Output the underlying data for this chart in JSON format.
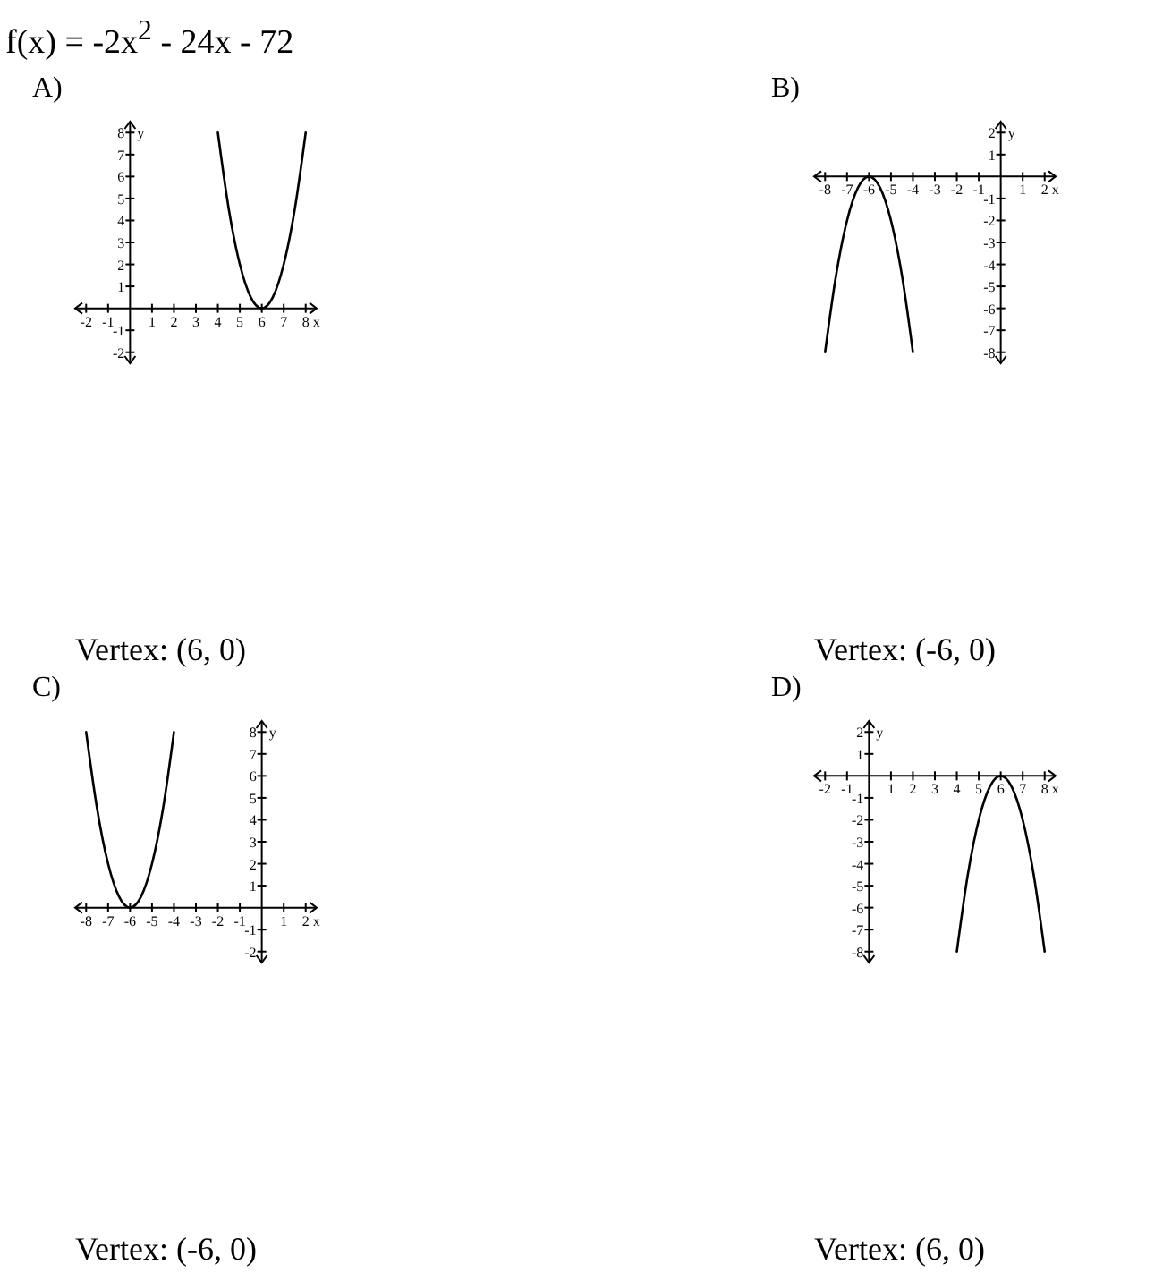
{
  "chart_data": [
    {
      "type": "line",
      "title": "f(x) = -2x$^{2}$ - 24x - 72",
      "subtitle": "A)",
      "xlabel": "x",
      "ylabel": "y",
      "xlim": [
        -2.5,
        8.5
      ],
      "ylim": [
        -2.5,
        8.5
      ],
      "xticks": [
        -2,
        -1,
        1,
        2,
        3,
        4,
        5,
        6,
        7,
        8
      ],
      "yticks": [
        -2,
        -1,
        1,
        2,
        3,
        4,
        5,
        6,
        7,
        8
      ],
      "marker": "none",
      "line_style": "solid",
      "series": [
        {
          "color": "#000000",
          "x": [
            4,
            4.5,
            5,
            5.5,
            6,
            6.5,
            7,
            7.5,
            8
          ],
          "values": [
            8,
            4.5,
            2,
            0.5,
            0,
            0.5,
            2,
            4.5,
            8
          ]
        }
      ],
      "annotations": [
        "Vertex: (6, 0)"
      ]
    },
    {
      "type": "line",
      "subtitle": "B)",
      "xlabel": "x",
      "ylabel": "y",
      "xlim": [
        -8.5,
        2.5
      ],
      "ylim": [
        -8.5,
        2.5
      ],
      "xticks": [
        -8,
        -7,
        -6,
        -5,
        -4,
        -3,
        -2,
        -1,
        1,
        2
      ],
      "yticks": [
        -8,
        -7,
        -6,
        -5,
        -4,
        -3,
        -2,
        -1,
        1,
        2
      ],
      "marker": "none",
      "line_style": "solid",
      "series": [
        {
          "color": "#000000",
          "x": [
            -8,
            -7.5,
            -7,
            -6.5,
            -6,
            -5.5,
            -5,
            -4.5,
            -4
          ],
          "values": [
            -8,
            -4.5,
            -2,
            -0.5,
            0,
            -0.5,
            -2,
            -4.5,
            -8
          ]
        }
      ],
      "annotations": [
        "Vertex: (-6, 0)"
      ]
    },
    {
      "type": "line",
      "subtitle": "C)",
      "xlabel": "x",
      "ylabel": "y",
      "xlim": [
        -8.5,
        2.5
      ],
      "ylim": [
        -2.5,
        8.5
      ],
      "xticks": [
        -8,
        -7,
        -6,
        -5,
        -4,
        -3,
        -2,
        -1,
        1,
        2
      ],
      "yticks": [
        -2,
        -1,
        1,
        2,
        3,
        4,
        5,
        6,
        7,
        8
      ],
      "marker": "none",
      "line_style": "solid",
      "series": [
        {
          "color": "#000000",
          "x": [
            -8,
            -7.5,
            -7,
            -6.5,
            -6,
            -5.5,
            -5,
            -4.5,
            -4
          ],
          "values": [
            8,
            4.5,
            2,
            0.5,
            0,
            0.5,
            2,
            4.5,
            8
          ]
        }
      ],
      "annotations": [
        "Vertex: (-6, 0)"
      ]
    },
    {
      "type": "line",
      "subtitle": "D)",
      "xlabel": "x",
      "ylabel": "y",
      "xlim": [
        -2.5,
        8.5
      ],
      "ylim": [
        -8.5,
        2.5
      ],
      "xticks": [
        -2,
        -1,
        1,
        2,
        3,
        4,
        5,
        6,
        7,
        8
      ],
      "yticks": [
        -8,
        -7,
        -6,
        -5,
        -4,
        -3,
        -2,
        -1,
        1,
        2
      ],
      "marker": "none",
      "line_style": "solid",
      "series": [
        {
          "color": "#000000",
          "x": [
            4,
            4.5,
            5,
            5.5,
            6,
            6.5,
            7,
            7.5,
            8
          ],
          "values": [
            -8,
            -4.5,
            -2,
            -0.5,
            0,
            -0.5,
            -2,
            -4.5,
            -8
          ]
        }
      ],
      "annotations": [
        "Vertex: (6, 0)"
      ]
    }
  ]
}
